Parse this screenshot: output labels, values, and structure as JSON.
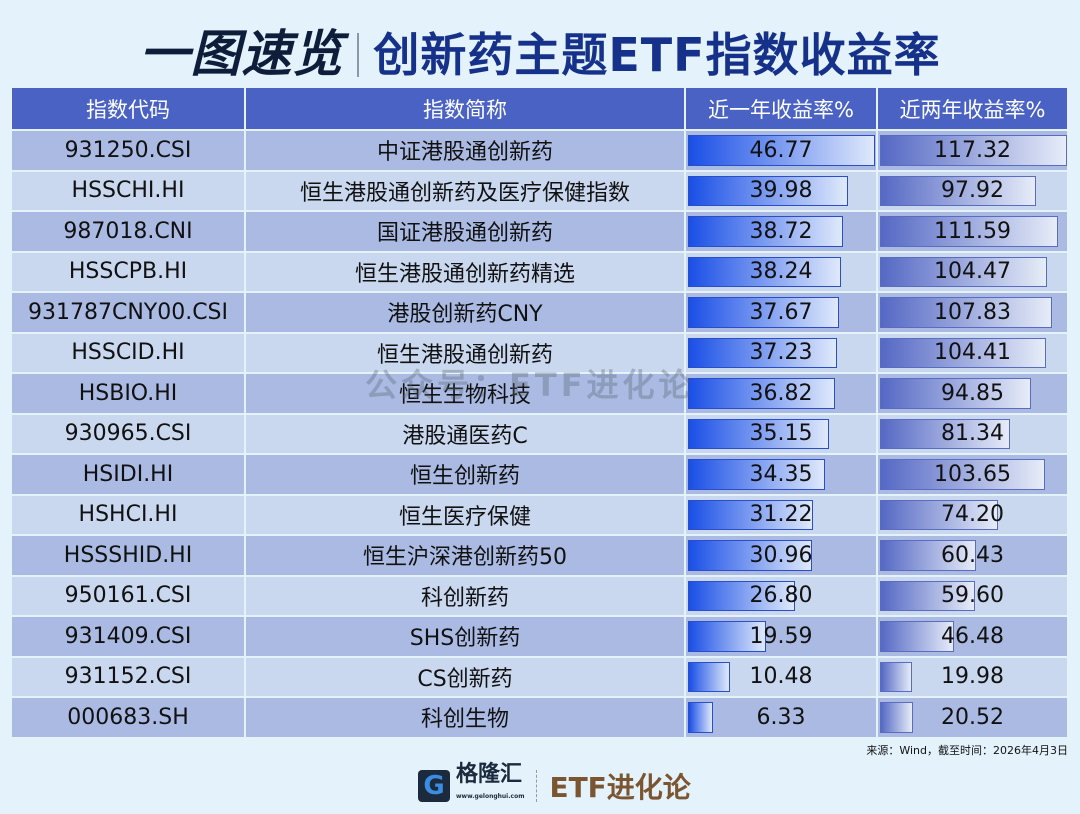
{
  "title": {
    "left": "一图速览",
    "right": "创新药主题ETF指数收益率"
  },
  "table": {
    "headers": [
      "指数代码",
      "指数简称",
      "近一年收益率%",
      "近两年收益率%"
    ],
    "rows": [
      {
        "code": "931250.CSI",
        "name": "中证港股通创新药",
        "y1": "46.77",
        "y2": "117.32"
      },
      {
        "code": "HSSCHI.HI",
        "name": "恒生港股通创新药及医疗保健指数",
        "y1": "39.98",
        "y2": "97.92"
      },
      {
        "code": "987018.CNI",
        "name": "国证港股通创新药",
        "y1": "38.72",
        "y2": "111.59"
      },
      {
        "code": "HSSCPB.HI",
        "name": "恒生港股通创新药精选",
        "y1": "38.24",
        "y2": "104.47"
      },
      {
        "code": "931787CNY00.CSI",
        "name": "港股创新药CNY",
        "y1": "37.67",
        "y2": "107.83"
      },
      {
        "code": "HSSCID.HI",
        "name": "恒生港股通创新药",
        "y1": "37.23",
        "y2": "104.41"
      },
      {
        "code": "HSBIO.HI",
        "name": "恒生生物科技",
        "y1": "36.82",
        "y2": "94.85"
      },
      {
        "code": "930965.CSI",
        "name": "港股通医药C",
        "y1": "35.15",
        "y2": "81.34"
      },
      {
        "code": "HSIDI.HI",
        "name": "恒生创新药",
        "y1": "34.35",
        "y2": "103.65"
      },
      {
        "code": "HSHCI.HI",
        "name": "恒生医疗保健",
        "y1": "31.22",
        "y2": "74.20"
      },
      {
        "code": "HSSSHID.HI",
        "name": "恒生沪深港创新药50",
        "y1": "30.96",
        "y2": "60.43"
      },
      {
        "code": "950161.CSI",
        "name": "科创新药",
        "y1": "26.80",
        "y2": "59.60"
      },
      {
        "code": "931409.CSI",
        "name": "SHS创新药",
        "y1": "19.59",
        "y2": "46.48"
      },
      {
        "code": "931152.CSI",
        "name": "CS创新药",
        "y1": "10.48",
        "y2": "19.98"
      },
      {
        "code": "000683.SH",
        "name": "科创生物",
        "y1": "6.33",
        "y2": "20.52"
      }
    ]
  },
  "watermark": "公众号：ETF进化论",
  "source": "来源：Wind，截至时间：2026年4月3日",
  "footer": {
    "brand": "格隆汇",
    "url": "www.gelonghui.com",
    "column": "ETF进化论"
  },
  "colors": {
    "header": "#4a62c4",
    "title": "#16318a",
    "bar1": "#1a4fe6",
    "bar2": "#5568c4"
  }
}
